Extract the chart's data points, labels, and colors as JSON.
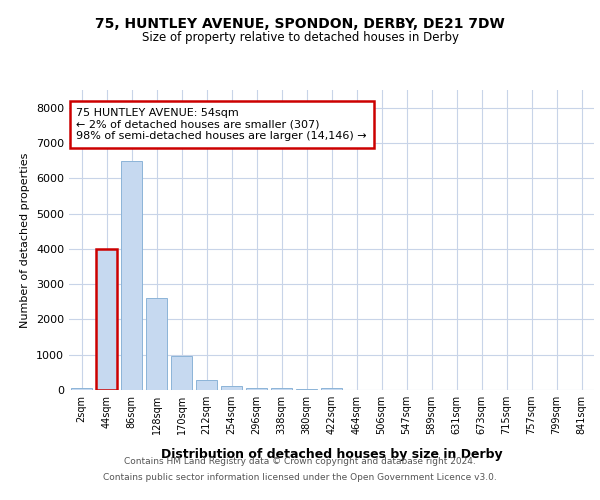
{
  "title1": "75, HUNTLEY AVENUE, SPONDON, DERBY, DE21 7DW",
  "title2": "Size of property relative to detached houses in Derby",
  "xlabel": "Distribution of detached houses by size in Derby",
  "ylabel": "Number of detached properties",
  "categories": [
    "2sqm",
    "44sqm",
    "86sqm",
    "128sqm",
    "170sqm",
    "212sqm",
    "254sqm",
    "296sqm",
    "338sqm",
    "380sqm",
    "422sqm",
    "464sqm",
    "506sqm",
    "547sqm",
    "589sqm",
    "631sqm",
    "673sqm",
    "715sqm",
    "757sqm",
    "799sqm",
    "841sqm"
  ],
  "values": [
    45,
    4000,
    6500,
    2600,
    950,
    270,
    120,
    60,
    60,
    20,
    50,
    0,
    0,
    0,
    0,
    0,
    0,
    0,
    0,
    0,
    0
  ],
  "bar_color": "#c6d9f0",
  "bar_edge_color": "#8cb4d8",
  "highlight_bar_index": 1,
  "highlight_bar_edge_color": "#cc0000",
  "annotation_text": "75 HUNTLEY AVENUE: 54sqm\n← 2% of detached houses are smaller (307)\n98% of semi-detached houses are larger (14,146) →",
  "annotation_box_color": "#ffffff",
  "annotation_box_edge_color": "#cc0000",
  "ylim": [
    0,
    8500
  ],
  "yticks": [
    0,
    1000,
    2000,
    3000,
    4000,
    5000,
    6000,
    7000,
    8000
  ],
  "footer1": "Contains HM Land Registry data © Crown copyright and database right 2024.",
  "footer2": "Contains public sector information licensed under the Open Government Licence v3.0.",
  "bg_color": "#ffffff",
  "grid_color": "#c8d4e8"
}
